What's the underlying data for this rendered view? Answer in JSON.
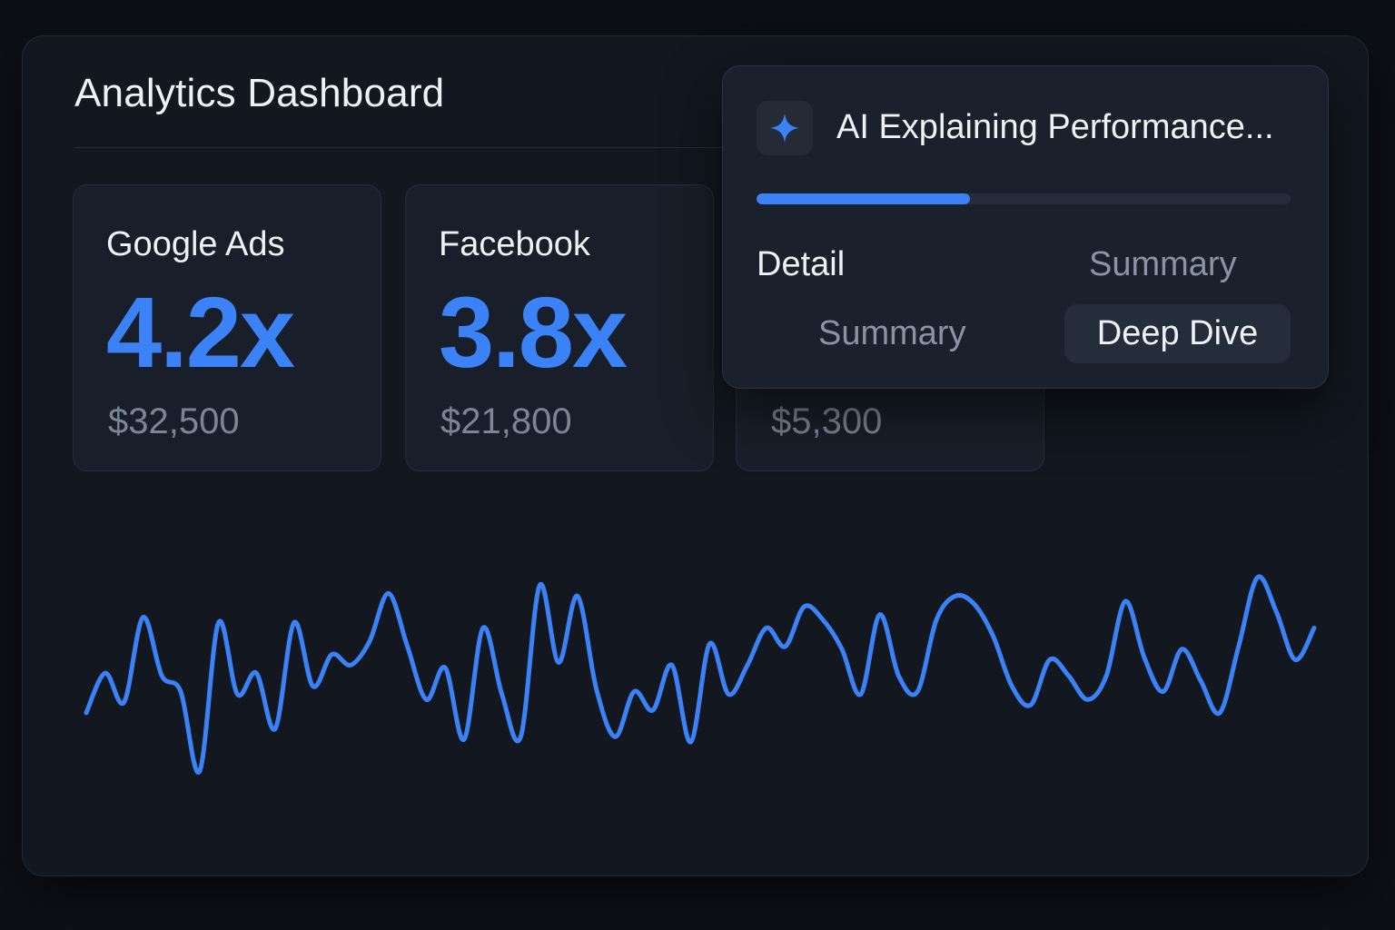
{
  "header": {
    "title": "Analytics Dashboard"
  },
  "cards": [
    {
      "label": "Google Ads",
      "value": "4.2x",
      "spend": "$32,500"
    },
    {
      "label": "Facebook",
      "value": "3.8x",
      "spend": "$21,800"
    },
    {
      "label": "",
      "value": "",
      "spend": "$5,300"
    }
  ],
  "ai_panel": {
    "icon": "sparkle-icon",
    "title": "AI Explaining Performance...",
    "progress": 0.4,
    "options": {
      "detail": "Detail",
      "summary_right": "Summary",
      "summary_left": "Summary",
      "deep_dive": "Deep Dive"
    }
  },
  "colors": {
    "accent": "#3b82f6",
    "background": "#121720",
    "card": "#191f2a"
  },
  "chart_data": {
    "type": "line",
    "x": [
      0,
      1,
      2,
      3,
      4,
      5,
      6,
      7,
      8,
      9,
      10,
      11,
      12,
      13,
      14,
      15,
      16,
      17,
      18,
      19,
      20,
      21,
      22,
      23,
      24,
      25,
      26,
      27,
      28,
      29,
      30,
      31,
      32,
      33,
      34,
      35,
      36,
      37,
      38,
      39,
      40,
      41,
      42,
      43,
      44,
      45,
      46,
      47,
      48,
      49,
      50,
      51,
      52,
      53,
      54,
      55,
      56,
      57,
      58,
      59,
      60,
      61,
      62,
      63,
      64,
      65
    ],
    "series": [
      {
        "values": [
          19,
          34,
          23,
          55,
          33,
          27,
          -3,
          53,
          26,
          34,
          13,
          53,
          29,
          41,
          37,
          46,
          64,
          44,
          24,
          36,
          9,
          51,
          26,
          10,
          67,
          38,
          63,
          28,
          10,
          27,
          20,
          37,
          8,
          45,
          26,
          37,
          51,
          44,
          59,
          54,
          43,
          26,
          56,
          33,
          27,
          54,
          63,
          60,
          48,
          29,
          22,
          39,
          33,
          24,
          33,
          61,
          40,
          27,
          43,
          31,
          19,
          44,
          70,
          57,
          39,
          51
        ]
      }
    ]
  }
}
